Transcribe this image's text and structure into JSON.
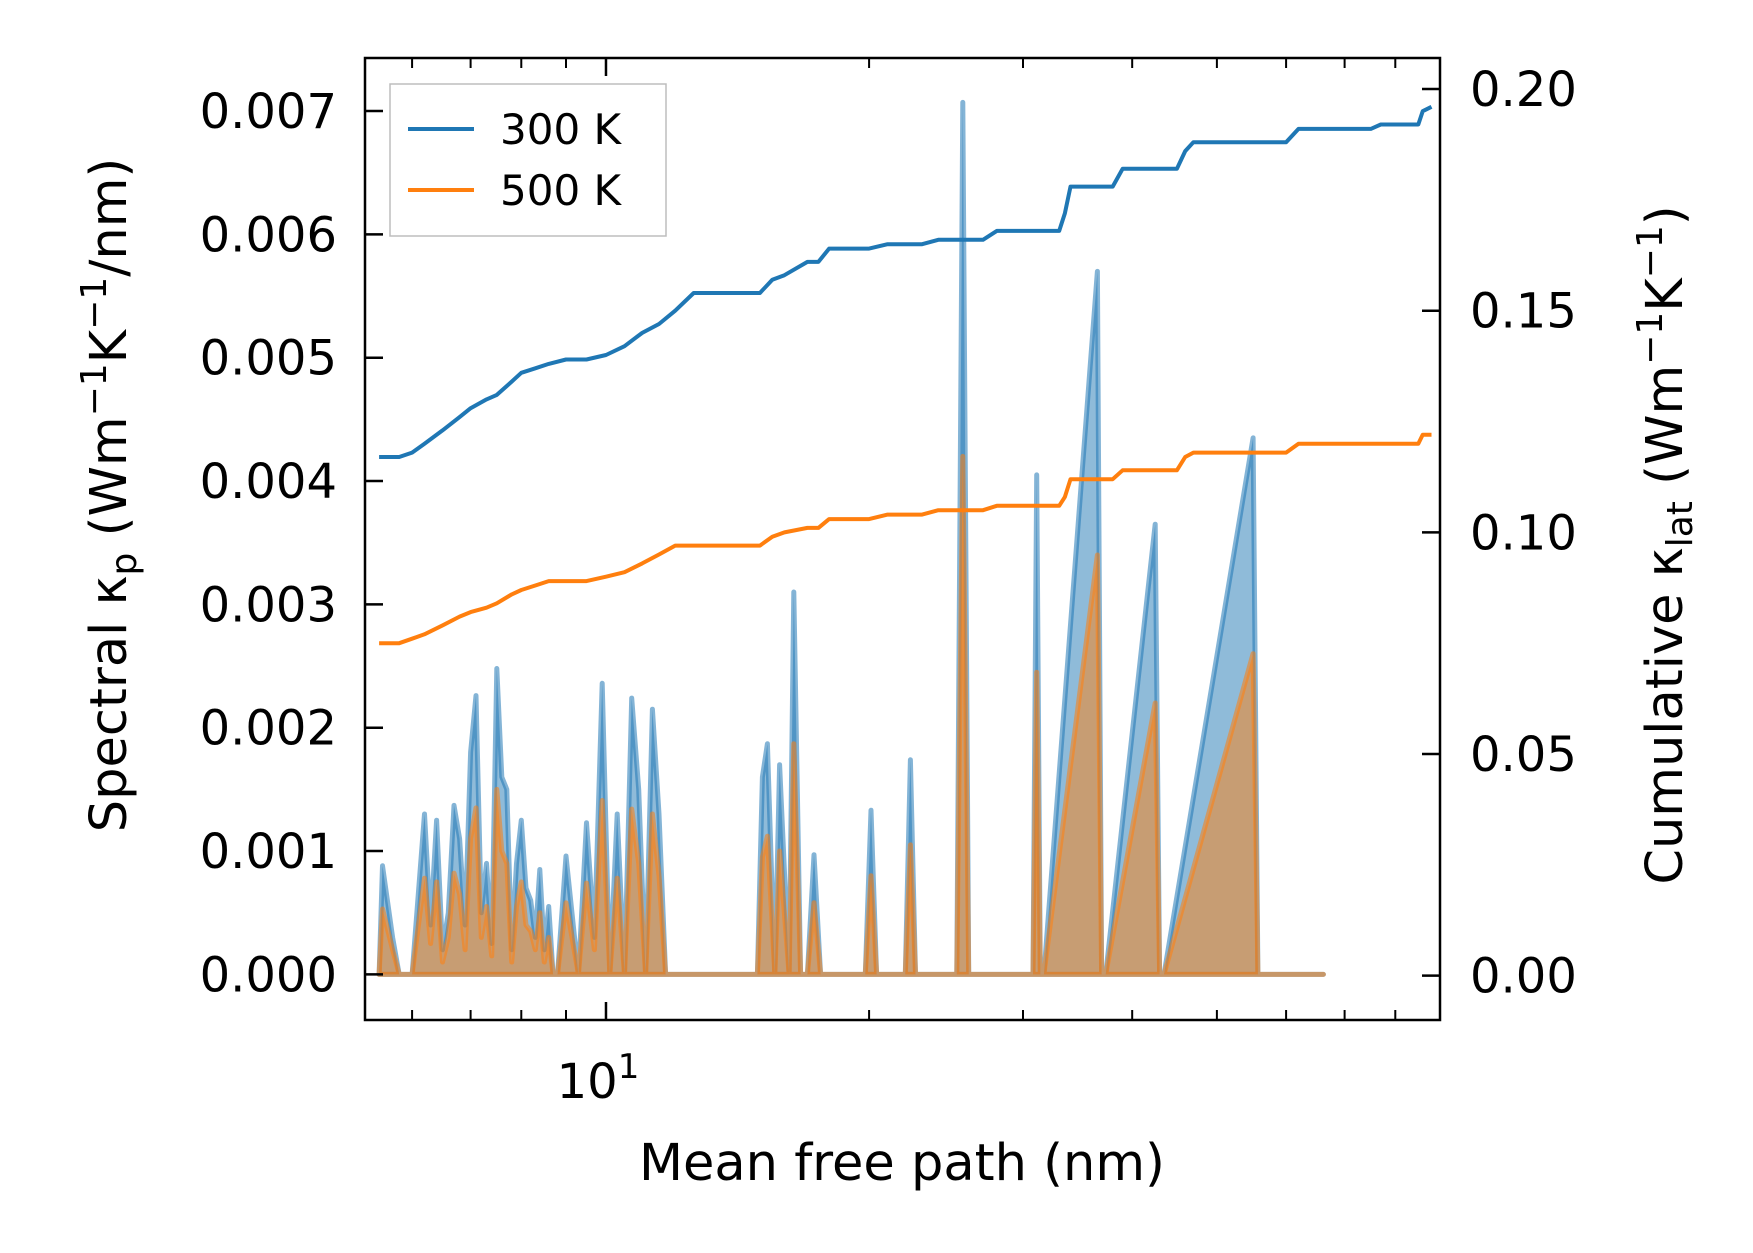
{
  "chart_data": {
    "type": "line",
    "xscale": "log",
    "xlim": [
      5.3,
      90
    ],
    "xlabel": "Mean free path (nm)",
    "xticks": [
      {
        "value": 10,
        "base": "10",
        "exp": "1"
      }
    ],
    "y_left": {
      "label_parts": [
        "Spectral κ",
        "p",
        " (Wm",
        "−1",
        "K",
        "−1",
        "/nm)"
      ],
      "ylim": [
        -0.00037,
        0.00743
      ],
      "ticks": [
        0,
        0.001,
        0.002,
        0.003,
        0.004,
        0.005,
        0.006,
        0.007
      ],
      "tick_labels": [
        "0.000",
        "0.001",
        "0.002",
        "0.003",
        "0.004",
        "0.005",
        "0.006",
        "0.007"
      ]
    },
    "y_right": {
      "label_parts": [
        "Cumulative κ",
        "lat",
        " (Wm",
        "−1",
        "K",
        "−1",
        ")"
      ],
      "ylim": [
        -0.01,
        0.207
      ],
      "ticks": [
        0,
        0.05,
        0.1,
        0.15,
        0.2
      ],
      "tick_labels": [
        "0.00",
        "0.05",
        "0.10",
        "0.15",
        "0.20"
      ]
    },
    "legend": {
      "position": "upper-left",
      "entries": [
        "300 K",
        "500 K"
      ]
    },
    "colors": {
      "300 K": "#1f77b4",
      "500 K": "#ff7f0e",
      "axis": "#000000"
    },
    "series": [
      {
        "name": "300 K",
        "axis": "right",
        "kind": "cumulative",
        "x": [
          5.5,
          5.8,
          6.0,
          6.2,
          6.5,
          6.8,
          7.0,
          7.3,
          7.5,
          7.8,
          8.0,
          8.3,
          8.6,
          9.0,
          9.5,
          10.0,
          10.5,
          11.0,
          11.5,
          12.0,
          12.6,
          13.0,
          15.0,
          15.5,
          16.0,
          17.0,
          17.5,
          18.0,
          20.0,
          21.0,
          23.0,
          24.0,
          27.0,
          28.0,
          33.0,
          33.5,
          34.0,
          38.0,
          39.0,
          45.0,
          46.0,
          47.0,
          50.0,
          60.0,
          62.0,
          75.0,
          77.0,
          85.0,
          86.0,
          88.0
        ],
        "y": [
          0.117,
          0.117,
          0.118,
          0.12,
          0.123,
          0.126,
          0.128,
          0.13,
          0.131,
          0.134,
          0.136,
          0.137,
          0.138,
          0.139,
          0.139,
          0.14,
          0.142,
          0.145,
          0.147,
          0.15,
          0.154,
          0.154,
          0.154,
          0.157,
          0.158,
          0.161,
          0.161,
          0.164,
          0.164,
          0.165,
          0.165,
          0.166,
          0.166,
          0.168,
          0.168,
          0.172,
          0.178,
          0.178,
          0.182,
          0.182,
          0.186,
          0.188,
          0.188,
          0.188,
          0.191,
          0.191,
          0.192,
          0.192,
          0.195,
          0.196
        ]
      },
      {
        "name": "500 K",
        "axis": "right",
        "kind": "cumulative",
        "x": [
          5.5,
          5.8,
          6.0,
          6.2,
          6.5,
          6.8,
          7.0,
          7.3,
          7.5,
          7.8,
          8.0,
          8.3,
          8.6,
          9.0,
          9.5,
          10.0,
          10.5,
          11.0,
          11.5,
          12.0,
          12.6,
          13.0,
          15.0,
          15.5,
          16.0,
          17.0,
          17.5,
          18.0,
          20.0,
          21.0,
          23.0,
          24.0,
          27.0,
          28.0,
          33.0,
          33.5,
          34.0,
          38.0,
          39.0,
          45.0,
          46.0,
          47.0,
          50.0,
          60.0,
          62.0,
          75.0,
          77.0,
          85.0,
          86.0,
          88.0
        ],
        "y": [
          0.075,
          0.075,
          0.076,
          0.077,
          0.079,
          0.081,
          0.082,
          0.083,
          0.084,
          0.086,
          0.087,
          0.088,
          0.089,
          0.089,
          0.089,
          0.09,
          0.091,
          0.093,
          0.095,
          0.097,
          0.097,
          0.097,
          0.097,
          0.099,
          0.1,
          0.101,
          0.101,
          0.103,
          0.103,
          0.104,
          0.104,
          0.105,
          0.105,
          0.106,
          0.106,
          0.108,
          0.112,
          0.112,
          0.114,
          0.114,
          0.117,
          0.118,
          0.118,
          0.118,
          0.12,
          0.12,
          0.12,
          0.12,
          0.122,
          0.122
        ]
      },
      {
        "name": "300 K spectral",
        "axis": "left",
        "kind": "spectral",
        "x": [
          5.5,
          5.55,
          5.7,
          5.8,
          6.0,
          6.2,
          6.3,
          6.4,
          6.5,
          6.6,
          6.7,
          6.8,
          6.9,
          7.0,
          7.1,
          7.2,
          7.3,
          7.4,
          7.5,
          7.6,
          7.7,
          7.8,
          7.9,
          8.0,
          8.1,
          8.2,
          8.3,
          8.4,
          8.5,
          8.6,
          8.7,
          8.8,
          9.0,
          9.3,
          9.5,
          9.7,
          9.9,
          10.1,
          10.3,
          10.5,
          10.7,
          10.9,
          11.1,
          11.3,
          11.5,
          11.7,
          11.9,
          12.1,
          12.3,
          12.6,
          14.9,
          15.1,
          15.3,
          15.6,
          15.8,
          16.2,
          16.4,
          16.7,
          17.0,
          17.3,
          17.6,
          19.8,
          20.1,
          20.4,
          22.0,
          22.3,
          22.6,
          25.2,
          25.6,
          26.0,
          30.8,
          31.1,
          31.4,
          31.7,
          36.5,
          36.9,
          37.3,
          42.5,
          43.0,
          43.5,
          55.0,
          55.7,
          56.4,
          65.0,
          65.6,
          66.2
        ],
        "y": [
          0,
          0.00088,
          0.0003,
          0,
          0,
          0.0013,
          0.0004,
          0.00125,
          0.0002,
          0.0005,
          0.00137,
          0.0011,
          0.0004,
          0.0018,
          0.00226,
          0.0005,
          0.0009,
          0.00025,
          0.00248,
          0.0016,
          0.0015,
          0.0002,
          0.0009,
          0.00125,
          0.0007,
          0.0006,
          0.0003,
          0.00085,
          0.0002,
          0.00055,
          0,
          0,
          0.00096,
          0,
          0.00123,
          0.0003,
          0.00236,
          0,
          0.0013,
          0,
          0.00224,
          0.0015,
          0,
          0.00215,
          0.0013,
          0,
          0,
          0,
          0,
          0,
          0,
          0.0016,
          0.00187,
          0,
          0.0017,
          0,
          0.0031,
          0,
          0,
          0.00097,
          0,
          0,
          0.00133,
          0,
          0,
          0.00174,
          0,
          0,
          0.00707,
          0,
          0,
          0.00405,
          0,
          0,
          0.0057,
          0,
          0,
          0.00365,
          0,
          0,
          0.00435,
          0,
          0,
          0,
          0,
          0
        ]
      },
      {
        "name": "500 K spectral",
        "axis": "left",
        "kind": "spectral",
        "x": [
          5.5,
          5.55,
          5.7,
          5.8,
          6.0,
          6.2,
          6.3,
          6.4,
          6.5,
          6.6,
          6.7,
          6.8,
          6.9,
          7.0,
          7.1,
          7.2,
          7.3,
          7.4,
          7.5,
          7.6,
          7.7,
          7.8,
          7.9,
          8.0,
          8.1,
          8.2,
          8.3,
          8.4,
          8.5,
          8.6,
          8.7,
          8.8,
          9.0,
          9.3,
          9.5,
          9.7,
          9.9,
          10.1,
          10.3,
          10.5,
          10.7,
          10.9,
          11.1,
          11.3,
          11.5,
          11.7,
          11.9,
          12.1,
          12.3,
          12.6,
          14.9,
          15.1,
          15.3,
          15.6,
          15.8,
          16.2,
          16.4,
          16.7,
          17.0,
          17.3,
          17.6,
          19.8,
          20.1,
          20.4,
          22.0,
          22.3,
          22.6,
          25.2,
          25.6,
          26.0,
          30.8,
          31.1,
          31.4,
          31.7,
          36.5,
          36.9,
          37.3,
          42.5,
          43.0,
          43.5,
          55.0,
          55.7,
          56.4,
          65.0,
          65.6,
          66.2
        ],
        "y": [
          0,
          0.00053,
          0.0002,
          0,
          0,
          0.00078,
          0.00025,
          0.00075,
          0.0001,
          0.0003,
          0.00082,
          0.00065,
          0.0002,
          0.0011,
          0.00135,
          0.0003,
          0.00055,
          0.00015,
          0.0015,
          0.001,
          0.0009,
          0.0001,
          0.00055,
          0.00075,
          0.0004,
          0.00035,
          0.0002,
          0.0005,
          0.0001,
          0.0003,
          0,
          0,
          0.00058,
          0,
          0.00074,
          0.0002,
          0.00141,
          0,
          0.00078,
          0,
          0.00134,
          0.0009,
          0,
          0.0013,
          0.0008,
          0,
          0,
          0,
          0,
          0,
          0,
          0.00095,
          0.00112,
          0,
          0.001,
          0,
          0.00187,
          0,
          0,
          0.00058,
          0,
          0,
          0.0008,
          0,
          0,
          0.00105,
          0,
          0,
          0.0042,
          0,
          0,
          0.00245,
          0,
          0,
          0.0034,
          0,
          0,
          0.0022,
          0,
          0,
          0.0026,
          0,
          0,
          0,
          0,
          0
        ]
      }
    ]
  }
}
